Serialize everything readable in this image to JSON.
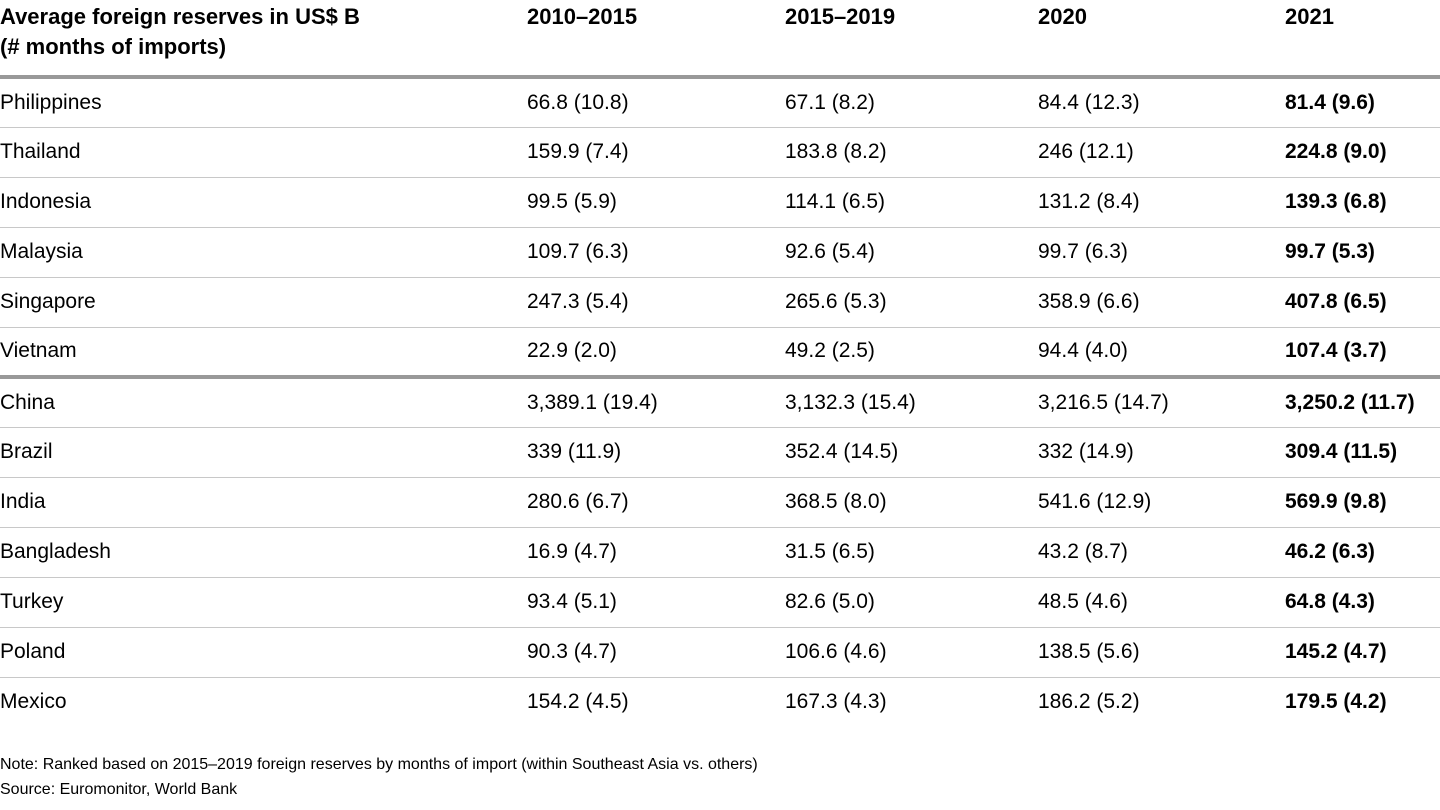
{
  "table": {
    "title_line1": "Average foreign reserves in US$ B",
    "title_line2": "(# months of imports)",
    "columns": [
      "2010–2015",
      "2015–2019",
      "2020",
      "2021"
    ],
    "groups": [
      {
        "name": "Southeast Asia",
        "rows": [
          {
            "country": "Philippines",
            "values": [
              "66.8 (10.8)",
              "67.1 (8.2)",
              "84.4 (12.3)",
              "81.4 (9.6)"
            ]
          },
          {
            "country": "Thailand",
            "values": [
              "159.9 (7.4)",
              "183.8 (8.2)",
              "246 (12.1)",
              "224.8 (9.0)"
            ]
          },
          {
            "country": "Indonesia",
            "values": [
              "99.5 (5.9)",
              "114.1 (6.5)",
              "131.2 (8.4)",
              "139.3 (6.8)"
            ]
          },
          {
            "country": "Malaysia",
            "values": [
              "109.7 (6.3)",
              "92.6 (5.4)",
              "99.7 (6.3)",
              "99.7 (5.3)"
            ]
          },
          {
            "country": "Singapore",
            "values": [
              "247.3 (5.4)",
              "265.6 (5.3)",
              "358.9 (6.6)",
              "407.8 (6.5)"
            ]
          },
          {
            "country": "Vietnam",
            "values": [
              "22.9 (2.0)",
              "49.2 (2.5)",
              "94.4 (4.0)",
              "107.4 (3.7)"
            ]
          }
        ]
      },
      {
        "name": "Others",
        "rows": [
          {
            "country": "China",
            "values": [
              "3,389.1 (19.4)",
              "3,132.3 (15.4)",
              "3,216.5 (14.7)",
              "3,250.2 (11.7)"
            ]
          },
          {
            "country": "Brazil",
            "values": [
              "339 (11.9)",
              "352.4 (14.5)",
              "332 (14.9)",
              "309.4 (11.5)"
            ]
          },
          {
            "country": "India",
            "values": [
              "280.6 (6.7)",
              "368.5 (8.0)",
              "541.6 (12.9)",
              "569.9 (9.8)"
            ]
          },
          {
            "country": "Bangladesh",
            "values": [
              "16.9 (4.7)",
              "31.5 (6.5)",
              "43.2 (8.7)",
              "46.2 (6.3)"
            ]
          },
          {
            "country": "Turkey",
            "values": [
              "93.4 (5.1)",
              "82.6 (5.0)",
              "48.5 (4.6)",
              "64.8 (4.3)"
            ]
          },
          {
            "country": "Poland",
            "values": [
              "90.3 (4.7)",
              "106.6 (4.6)",
              "138.5 (5.6)",
              "145.2 (4.7)"
            ]
          },
          {
            "country": "Mexico",
            "values": [
              "154.2 (4.5)",
              "167.3 (4.3)",
              "186.2 (5.2)",
              "179.5 (4.2)"
            ]
          }
        ]
      }
    ]
  },
  "footer": {
    "note": "Note: Ranked based on 2015–2019 foreign reserves by months of import (within Southeast Asia vs. others)",
    "source": "Source: Euromonitor, World Bank"
  },
  "colors": {
    "background": "#ffffff",
    "text": "#000000",
    "divider_thin": "#c8c8c8",
    "divider_thick": "#999999"
  },
  "chart_data": {
    "type": "table",
    "title": "Average foreign reserves in US$ B (# months of imports)",
    "columns": [
      "2010–2015",
      "2015–2019",
      "2020",
      "2021"
    ],
    "groups": [
      {
        "group": "Southeast Asia",
        "rows": [
          {
            "country": "Philippines",
            "reserves_usd_b": [
              66.8,
              67.1,
              84.4,
              81.4
            ],
            "months_of_imports": [
              10.8,
              8.2,
              12.3,
              9.6
            ]
          },
          {
            "country": "Thailand",
            "reserves_usd_b": [
              159.9,
              183.8,
              246,
              224.8
            ],
            "months_of_imports": [
              7.4,
              8.2,
              12.1,
              9.0
            ]
          },
          {
            "country": "Indonesia",
            "reserves_usd_b": [
              99.5,
              114.1,
              131.2,
              139.3
            ],
            "months_of_imports": [
              5.9,
              6.5,
              8.4,
              6.8
            ]
          },
          {
            "country": "Malaysia",
            "reserves_usd_b": [
              109.7,
              92.6,
              99.7,
              99.7
            ],
            "months_of_imports": [
              6.3,
              5.4,
              6.3,
              5.3
            ]
          },
          {
            "country": "Singapore",
            "reserves_usd_b": [
              247.3,
              265.6,
              358.9,
              407.8
            ],
            "months_of_imports": [
              5.4,
              5.3,
              6.6,
              6.5
            ]
          },
          {
            "country": "Vietnam",
            "reserves_usd_b": [
              22.9,
              49.2,
              94.4,
              107.4
            ],
            "months_of_imports": [
              2.0,
              2.5,
              4.0,
              3.7
            ]
          }
        ]
      },
      {
        "group": "Others",
        "rows": [
          {
            "country": "China",
            "reserves_usd_b": [
              3389.1,
              3132.3,
              3216.5,
              3250.2
            ],
            "months_of_imports": [
              19.4,
              15.4,
              14.7,
              11.7
            ]
          },
          {
            "country": "Brazil",
            "reserves_usd_b": [
              339,
              352.4,
              332,
              309.4
            ],
            "months_of_imports": [
              11.9,
              14.5,
              14.9,
              11.5
            ]
          },
          {
            "country": "India",
            "reserves_usd_b": [
              280.6,
              368.5,
              541.6,
              569.9
            ],
            "months_of_imports": [
              6.7,
              8.0,
              12.9,
              9.8
            ]
          },
          {
            "country": "Bangladesh",
            "reserves_usd_b": [
              16.9,
              31.5,
              43.2,
              46.2
            ],
            "months_of_imports": [
              4.7,
              6.5,
              8.7,
              6.3
            ]
          },
          {
            "country": "Turkey",
            "reserves_usd_b": [
              93.4,
              82.6,
              48.5,
              64.8
            ],
            "months_of_imports": [
              5.1,
              5.0,
              4.6,
              4.3
            ]
          },
          {
            "country": "Poland",
            "reserves_usd_b": [
              90.3,
              106.6,
              138.5,
              145.2
            ],
            "months_of_imports": [
              4.7,
              4.6,
              5.6,
              4.7
            ]
          },
          {
            "country": "Mexico",
            "reserves_usd_b": [
              154.2,
              167.3,
              186.2,
              179.5
            ],
            "months_of_imports": [
              4.5,
              4.3,
              5.2,
              4.2
            ]
          }
        ]
      }
    ],
    "note": "Ranked based on 2015–2019 foreign reserves by months of import (within Southeast Asia vs. others)",
    "source": "Euromonitor, World Bank"
  }
}
